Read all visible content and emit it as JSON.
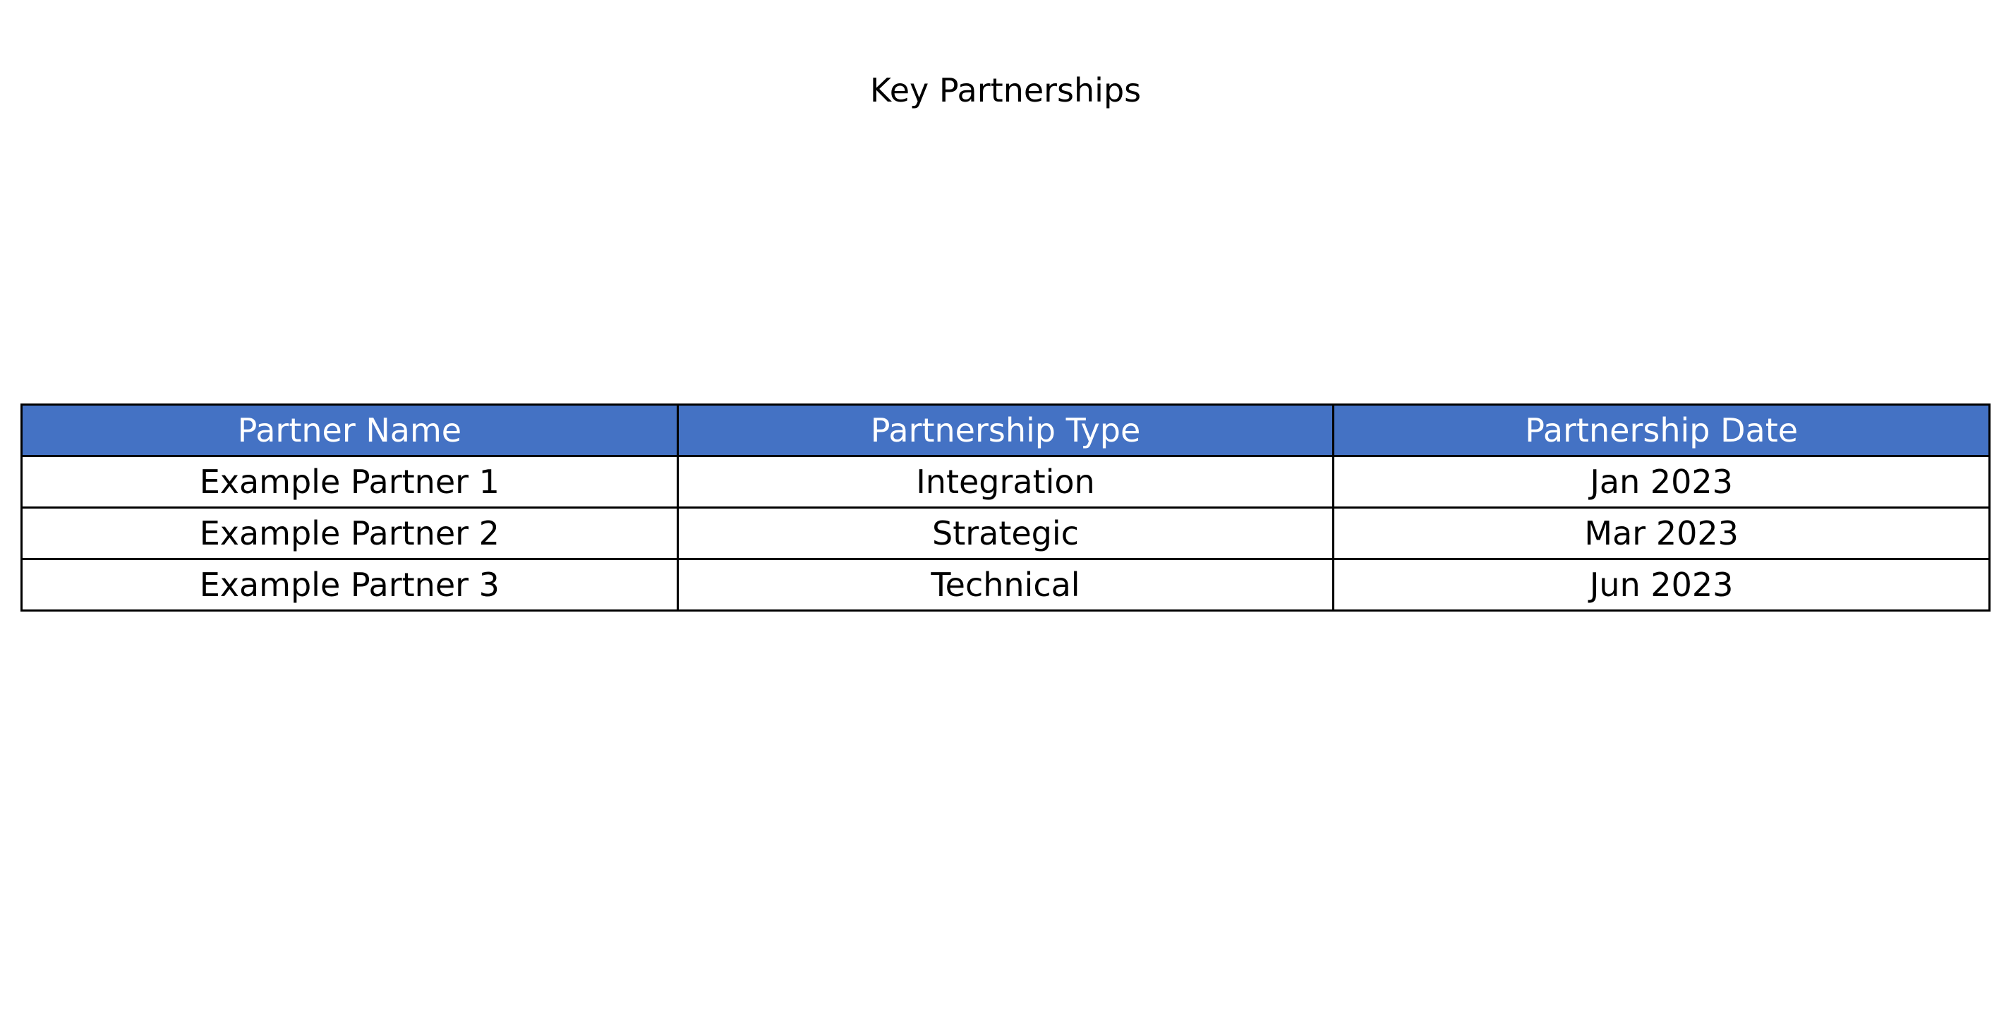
{
  "chart_data": {
    "type": "table",
    "title": "Key Partnerships",
    "columns": [
      "Partner Name",
      "Partnership Type",
      "Partnership Date"
    ],
    "rows": [
      [
        "Example Partner 1",
        "Integration",
        "Jan 2023"
      ],
      [
        "Example Partner 2",
        "Strategic",
        "Mar 2023"
      ],
      [
        "Example Partner 3",
        "Technical",
        "Jun 2023"
      ]
    ],
    "header_color": "#4472C4",
    "header_text_color": "#FFFFFF",
    "border_color": "#000000"
  }
}
